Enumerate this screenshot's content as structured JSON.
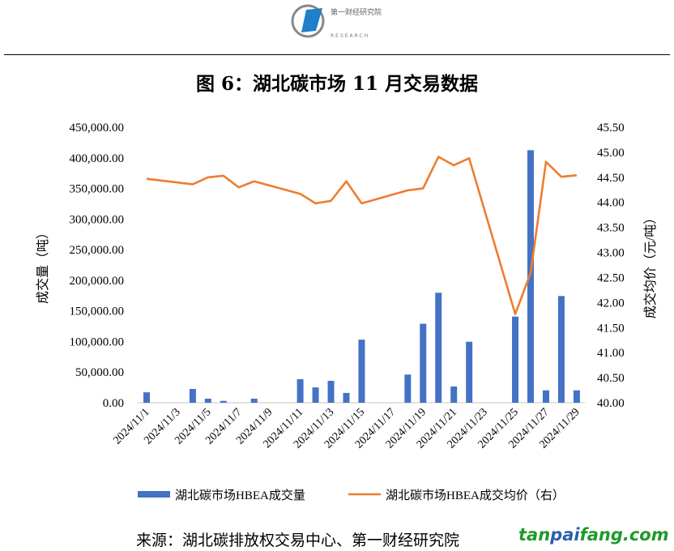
{
  "header": {
    "logo_text": "第一财经研究院",
    "logo_sub": "RESEARCH"
  },
  "title": "图 6：湖北碳市场 11 月交易数据",
  "source": "来源：湖北碳排放权交易中心、第一财经研究院",
  "watermark": {
    "part1": "tan",
    "part2": "pai",
    "part3": "fang.com"
  },
  "chart_data": {
    "type": "bar+line",
    "title": "图 6：湖北碳市场 11 月交易数据",
    "categories": [
      "2024/11/1",
      "2024/11/2",
      "2024/11/3",
      "2024/11/4",
      "2024/11/5",
      "2024/11/6",
      "2024/11/7",
      "2024/11/8",
      "2024/11/9",
      "2024/11/10",
      "2024/11/11",
      "2024/11/12",
      "2024/11/13",
      "2024/11/14",
      "2024/11/15",
      "2024/11/16",
      "2024/11/17",
      "2024/11/18",
      "2024/11/19",
      "2024/11/20",
      "2024/11/21",
      "2024/11/22",
      "2024/11/23",
      "2024/11/24",
      "2024/11/25",
      "2024/11/26",
      "2024/11/27",
      "2024/11/28",
      "2024/11/29"
    ],
    "x_tick_labels": [
      "2024/11/1",
      "2024/11/3",
      "2024/11/5",
      "2024/11/7",
      "2024/11/9",
      "2024/11/11",
      "2024/11/13",
      "2024/11/15",
      "2024/11/17",
      "2024/11/19",
      "2024/11/21",
      "2024/11/23",
      "2024/11/25",
      "2024/11/27",
      "2024/11/29"
    ],
    "ylabel": "成交量（吨）",
    "y2label": "成交均价（元/吨）",
    "ylim": [
      0,
      450000
    ],
    "y2lim": [
      40,
      45.5
    ],
    "y_ticks": [
      "0.00",
      "50,000.00",
      "100,000.00",
      "150,000.00",
      "200,000.00",
      "250,000.00",
      "300,000.00",
      "350,000.00",
      "400,000.00",
      "450,000.00"
    ],
    "y2_ticks": [
      "40.00",
      "40.50",
      "41.00",
      "41.50",
      "42.00",
      "42.50",
      "43.00",
      "43.50",
      "44.00",
      "44.50",
      "45.00",
      "45.50"
    ],
    "legend_position": "bottom",
    "series": [
      {
        "name": "湖北碳市场HBEA成交量",
        "type": "bar",
        "axis": "left",
        "color": "#4472C4",
        "points": [
          [
            1,
            17000
          ],
          [
            4,
            22500
          ],
          [
            5,
            6600
          ],
          [
            6,
            3000
          ],
          [
            7,
            0
          ],
          [
            8,
            6600
          ],
          [
            11,
            38400
          ],
          [
            12,
            25000
          ],
          [
            13,
            35700
          ],
          [
            14,
            16000
          ],
          [
            15,
            103000
          ],
          [
            18,
            46000
          ],
          [
            19,
            129000
          ],
          [
            20,
            179600
          ],
          [
            21,
            26500
          ],
          [
            22,
            99600
          ],
          [
            25,
            140700
          ],
          [
            26,
            412500
          ],
          [
            27,
            20200
          ],
          [
            28,
            174300
          ],
          [
            29,
            20200
          ]
        ]
      },
      {
        "name": "湖北碳市场HBEA成交均价（右）",
        "type": "line",
        "axis": "right",
        "color": "#ED7D31",
        "points": [
          [
            1,
            44.47
          ],
          [
            4,
            44.36
          ],
          [
            5,
            44.5
          ],
          [
            6,
            44.53
          ],
          [
            7,
            44.3
          ],
          [
            8,
            44.42
          ],
          [
            11,
            44.17
          ],
          [
            12,
            43.98
          ],
          [
            13,
            44.03
          ],
          [
            14,
            44.42
          ],
          [
            15,
            43.98
          ],
          [
            18,
            44.24
          ],
          [
            19,
            44.28
          ],
          [
            20,
            44.91
          ],
          [
            21,
            44.74
          ],
          [
            22,
            44.88
          ],
          [
            25,
            41.77
          ],
          [
            26,
            42.59
          ],
          [
            27,
            44.81
          ],
          [
            28,
            44.51
          ],
          [
            29,
            44.54
          ]
        ]
      }
    ]
  }
}
